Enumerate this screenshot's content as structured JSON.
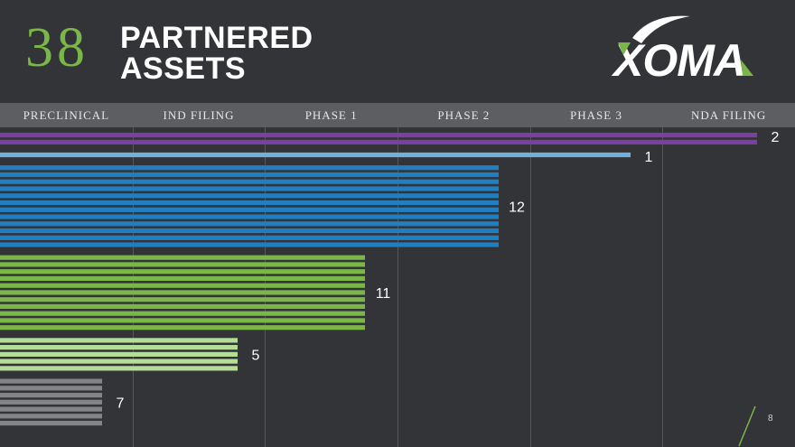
{
  "header": {
    "count": "38",
    "title_line1": "PARTNERED",
    "title_line2": "ASSETS",
    "logo_text": "XOMA"
  },
  "phases": [
    "PRECLINICAL",
    "IND FILING",
    "PHASE 1",
    "PHASE 2",
    "PHASE 3",
    "NDA FILING"
  ],
  "page_number": "8",
  "colors": {
    "background": "#323438",
    "accent_green": "#7ab648",
    "phase_band": "#5c5e62",
    "nda_filing": "#7b3fa0",
    "phase_3": "#6fb0dc",
    "phase_2": "#1f7fc1",
    "phase_1": "#7ab648",
    "ind_filing": "#b5dc98",
    "preclinical": "#838486"
  },
  "chart_data": {
    "type": "bar",
    "orientation": "horizontal",
    "categories": [
      "PRECLINICAL",
      "IND FILING",
      "PHASE 1",
      "PHASE 2",
      "PHASE 3",
      "NDA FILING"
    ],
    "groups": [
      {
        "stage": "NDA FILING",
        "count": 2,
        "label": "2",
        "color": "#7b3fa0"
      },
      {
        "stage": "PHASE 3",
        "count": 1,
        "label": "1",
        "color": "#6fb0dc"
      },
      {
        "stage": "PHASE 2",
        "count": 12,
        "label": "12",
        "color": "#1f7fc1"
      },
      {
        "stage": "PHASE 1",
        "count": 11,
        "label": "11",
        "color": "#7ab648"
      },
      {
        "stage": "IND FILING",
        "count": 5,
        "label": "5",
        "color": "#b5dc98"
      },
      {
        "stage": "PRECLINICAL",
        "count": 7,
        "label": "7",
        "color": "#838486"
      }
    ],
    "total": 38
  }
}
